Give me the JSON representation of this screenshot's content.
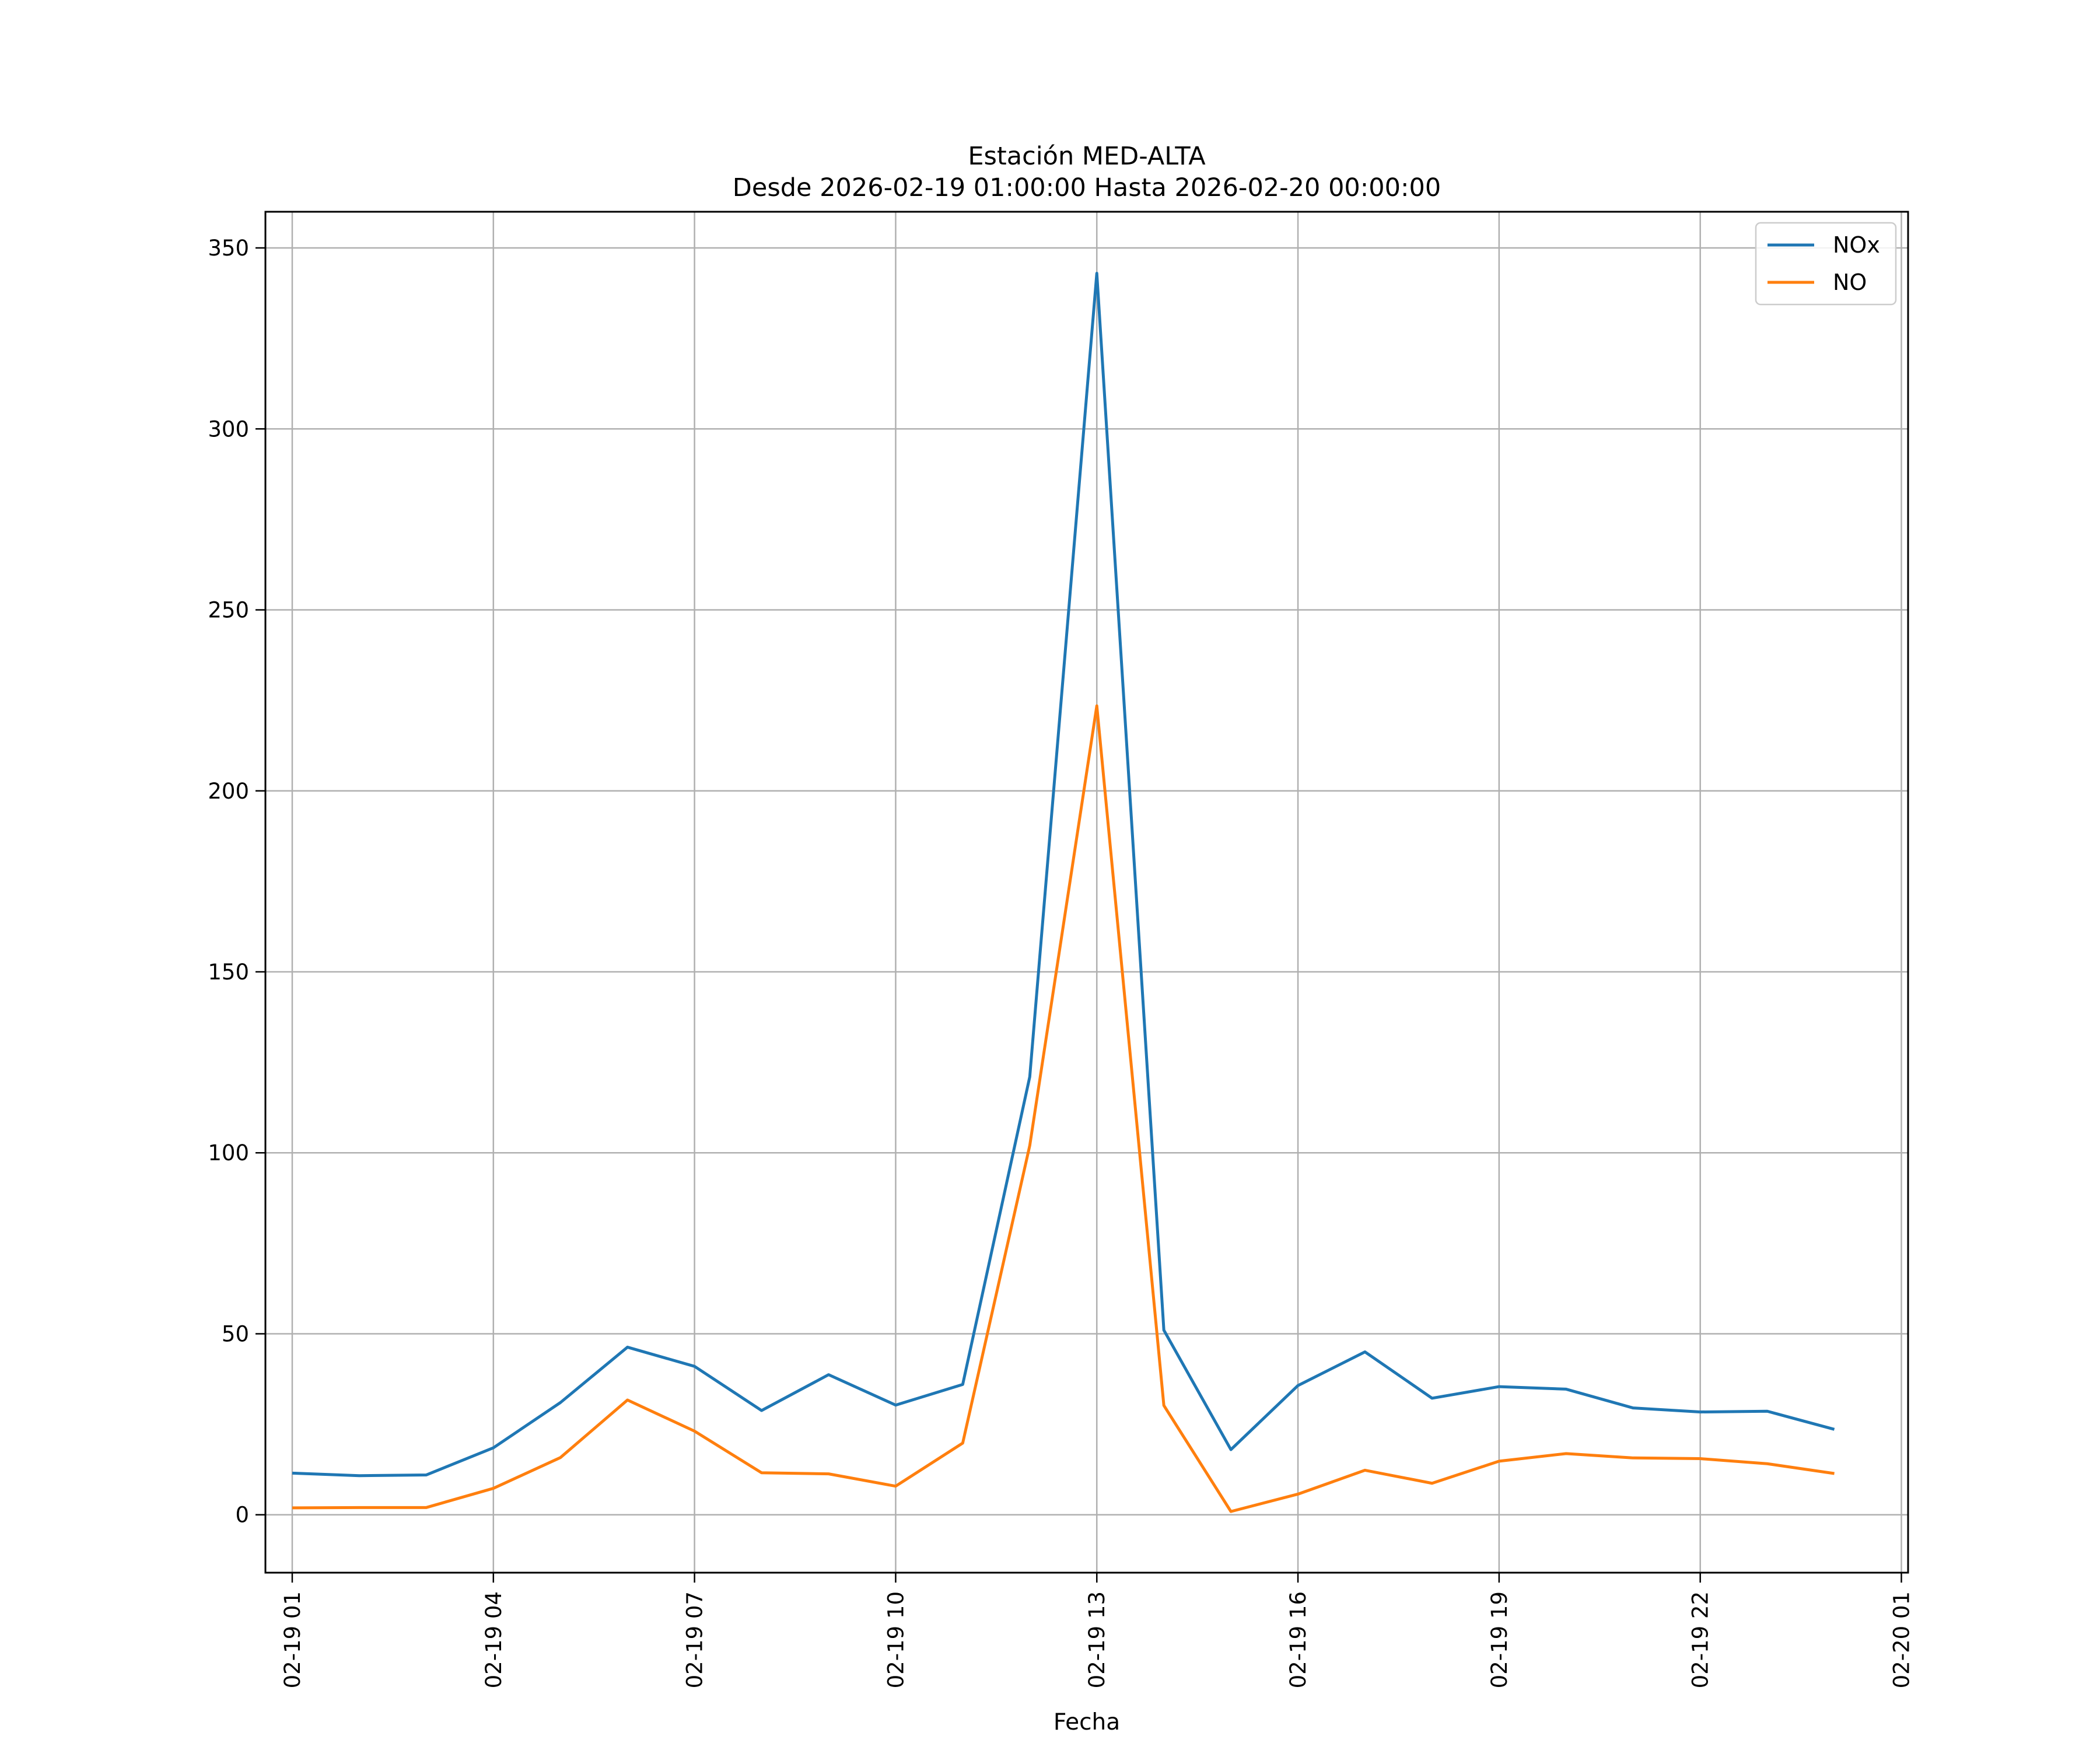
{
  "chart_data": {
    "type": "line",
    "title": "Estación MED-ALTA",
    "subtitle": "Desde 2026-02-19 01:00:00 Hasta 2026-02-20 00:00:00",
    "xlabel": "Fecha",
    "ylabel": "",
    "x_unit": "hours from 2026-02-19 00:00",
    "xlim": [
      0.6,
      25.1
    ],
    "ylim": [
      -16,
      360
    ],
    "xticks": [
      1,
      4,
      7,
      10,
      13,
      16,
      19,
      22,
      25
    ],
    "xtick_labels": [
      "02-19 01",
      "02-19 04",
      "02-19 07",
      "02-19 10",
      "02-19 13",
      "02-19 16",
      "02-19 19",
      "02-19 22",
      "02-20 01"
    ],
    "yticks": [
      0,
      50,
      100,
      150,
      200,
      250,
      300,
      350
    ],
    "ytick_labels": [
      "0",
      "50",
      "100",
      "150",
      "200",
      "250",
      "300",
      "350"
    ],
    "grid": true,
    "legend_position": "top-right",
    "x": [
      1,
      2,
      3,
      4,
      5,
      6,
      7,
      8,
      9,
      10,
      11,
      12,
      13,
      14,
      15,
      16,
      17,
      18,
      19,
      20,
      21,
      22,
      23,
      24
    ],
    "series": [
      {
        "name": "NOx",
        "color": "#1f77b4",
        "values": [
          11.5,
          10.8,
          11.0,
          18.5,
          31.0,
          46.3,
          41.0,
          28.8,
          38.7,
          30.3,
          36.0,
          121.0,
          343.0,
          51.0,
          18.0,
          35.7,
          45.0,
          32.2,
          35.4,
          34.7,
          29.5,
          28.4,
          28.6,
          23.6
        ]
      },
      {
        "name": "NO",
        "color": "#ff7f0e",
        "values": [
          1.9,
          2.0,
          2.0,
          7.3,
          15.8,
          31.7,
          23.1,
          11.6,
          11.3,
          7.9,
          19.8,
          102.0,
          223.5,
          30.2,
          0.9,
          5.7,
          12.3,
          8.7,
          14.8,
          16.9,
          15.7,
          15.5,
          14.1,
          11.4
        ]
      }
    ]
  }
}
